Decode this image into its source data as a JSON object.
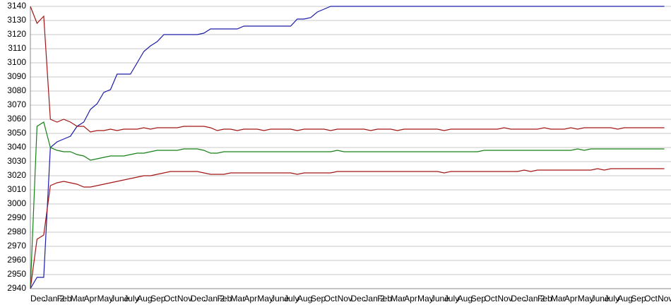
{
  "chart_data": {
    "type": "line",
    "categories": [
      "Dec",
      null,
      "Jan 2",
      null,
      "Feb",
      null,
      "Mar",
      null,
      "Apr",
      null,
      "May",
      null,
      "June",
      null,
      "July",
      null,
      "Aug",
      null,
      "Sep",
      null,
      "Oct",
      null,
      "Nov",
      null,
      "Dec",
      null,
      "Jan 2",
      null,
      "Feb",
      null,
      "Mar",
      null,
      "Apr",
      null,
      "May",
      null,
      "June",
      null,
      "July",
      null,
      "Aug",
      null,
      "Sep",
      null,
      "Oct",
      null,
      "Nov",
      null,
      "Dec",
      null,
      "Jan 2",
      null,
      "Feb",
      null,
      "Mar",
      null,
      "Apr",
      null,
      "May",
      null,
      "June",
      null,
      "July",
      null,
      "Aug",
      null,
      "Sep",
      null,
      "Oct",
      null,
      "Nov",
      null,
      "Dec",
      null,
      "Jan 2",
      null,
      "Feb",
      null,
      "Mar",
      null,
      "Apr",
      null,
      "May",
      null,
      "June",
      null,
      "July",
      null,
      "Aug",
      null,
      "Sep",
      null,
      "Oct",
      null,
      "Nov",
      null
    ],
    "series": [
      {
        "color": "#1c1ca8",
        "values": [
          2940,
          2948,
          2948,
          3040,
          3044,
          3046,
          3048,
          3055,
          3058,
          3067,
          3071,
          3079,
          3081,
          3092,
          3092,
          3092,
          3100,
          3108,
          3112,
          3115,
          3120,
          3120,
          3120,
          3120,
          3120,
          3120,
          3121,
          3124,
          3124,
          3124,
          3124,
          3124,
          3126,
          3126,
          3126,
          3126,
          3126,
          3126,
          3126,
          3126,
          3131,
          3131,
          3132,
          3136,
          3138,
          3140,
          3140,
          3140,
          3140,
          3140,
          3140,
          3140,
          3140,
          3140,
          3140,
          3140,
          3140,
          3140,
          3140,
          3140,
          3140,
          3140,
          3140,
          3140,
          3140,
          3140,
          3140,
          3140,
          3140,
          3140,
          3140,
          3140,
          3140,
          3140,
          3140,
          3140,
          3140,
          3140,
          3140,
          3140,
          3140,
          3140,
          3140,
          3140,
          3140,
          3140,
          3140,
          3140,
          3140,
          3140,
          3140,
          3140,
          3140,
          3140,
          3140,
          3140
        ]
      },
      {
        "color": "#a31515",
        "values": [
          3140,
          3128,
          3133,
          3060,
          3058,
          3060,
          3058,
          3055,
          3055,
          3051,
          3052,
          3052,
          3053,
          3052,
          3053,
          3053,
          3053,
          3054,
          3053,
          3054,
          3054,
          3054,
          3054,
          3055,
          3055,
          3055,
          3055,
          3054,
          3052,
          3053,
          3053,
          3052,
          3053,
          3053,
          3053,
          3052,
          3053,
          3053,
          3053,
          3053,
          3052,
          3053,
          3053,
          3053,
          3053,
          3052,
          3053,
          3053,
          3053,
          3053,
          3053,
          3052,
          3053,
          3053,
          3053,
          3052,
          3053,
          3053,
          3053,
          3053,
          3053,
          3053,
          3052,
          3053,
          3053,
          3053,
          3053,
          3053,
          3053,
          3053,
          3053,
          3054,
          3053,
          3053,
          3053,
          3053,
          3053,
          3054,
          3053,
          3053,
          3053,
          3054,
          3053,
          3054,
          3054,
          3054,
          3054,
          3054,
          3053,
          3054,
          3054,
          3054,
          3054,
          3054,
          3054,
          3054
        ]
      },
      {
        "color": "#158015",
        "values": [
          2940,
          3055,
          3058,
          3040,
          3038,
          3037,
          3037,
          3035,
          3034,
          3031,
          3032,
          3033,
          3034,
          3034,
          3034,
          3035,
          3036,
          3036,
          3037,
          3038,
          3038,
          3038,
          3038,
          3039,
          3039,
          3039,
          3038,
          3036,
          3036,
          3037,
          3037,
          3037,
          3037,
          3037,
          3037,
          3037,
          3037,
          3037,
          3037,
          3037,
          3037,
          3037,
          3037,
          3037,
          3037,
          3037,
          3038,
          3037,
          3037,
          3037,
          3037,
          3037,
          3037,
          3037,
          3037,
          3037,
          3037,
          3037,
          3037,
          3037,
          3037,
          3037,
          3037,
          3037,
          3037,
          3037,
          3037,
          3037,
          3038,
          3038,
          3038,
          3038,
          3038,
          3038,
          3038,
          3038,
          3038,
          3038,
          3038,
          3038,
          3038,
          3038,
          3039,
          3038,
          3039,
          3039,
          3039,
          3039,
          3039,
          3039,
          3039,
          3039,
          3039,
          3039,
          3039,
          3039
        ]
      },
      {
        "color": "#a31515",
        "values": [
          2940,
          2975,
          2978,
          3013,
          3015,
          3016,
          3015,
          3014,
          3012,
          3012,
          3013,
          3014,
          3015,
          3016,
          3017,
          3018,
          3019,
          3020,
          3020,
          3021,
          3022,
          3023,
          3023,
          3023,
          3023,
          3023,
          3022,
          3021,
          3021,
          3021,
          3022,
          3022,
          3022,
          3022,
          3022,
          3022,
          3022,
          3022,
          3022,
          3022,
          3021,
          3022,
          3022,
          3022,
          3022,
          3022,
          3023,
          3023,
          3023,
          3023,
          3023,
          3023,
          3023,
          3023,
          3023,
          3023,
          3023,
          3023,
          3023,
          3023,
          3023,
          3023,
          3022,
          3023,
          3023,
          3023,
          3023,
          3023,
          3023,
          3023,
          3023,
          3023,
          3023,
          3023,
          3024,
          3023,
          3024,
          3024,
          3024,
          3024,
          3024,
          3024,
          3024,
          3024,
          3024,
          3025,
          3024,
          3025,
          3025,
          3025,
          3025,
          3025,
          3025,
          3025,
          3025,
          3025
        ]
      }
    ],
    "ylim": [
      2940,
      3140
    ],
    "yticks": [
      2940,
      2950,
      2960,
      2970,
      2980,
      2990,
      3000,
      3010,
      3020,
      3030,
      3040,
      3050,
      3060,
      3070,
      3080,
      3090,
      3100,
      3110,
      3120,
      3130,
      3140
    ],
    "grid": true
  }
}
